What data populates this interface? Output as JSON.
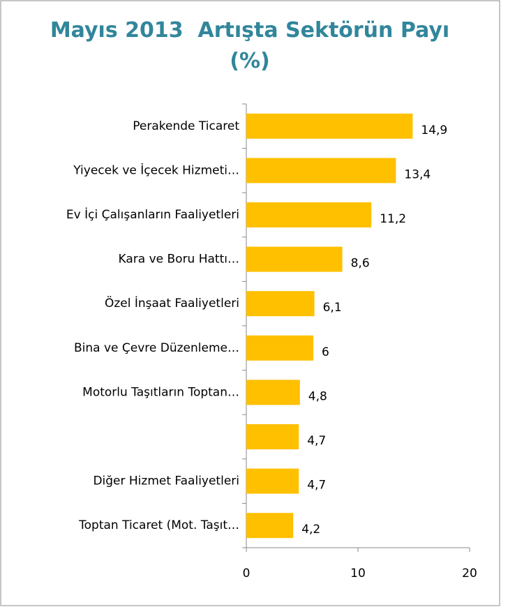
{
  "chart_data": {
    "type": "bar",
    "orientation": "horizontal",
    "title": "Mayıs 2013  Artışta Sektörün Payı\n(%)",
    "categories": [
      "Perakende Ticaret",
      "Yiyecek ve İçecek Hizmeti…",
      "Ev İçi Çalışanların Faaliyetleri",
      "Kara ve Boru Hattı…",
      "Özel İnşaat Faaliyetleri",
      "Bina ve Çevre Düzenleme…",
      "Motorlu Taşıtların Toptan…",
      null,
      "Diğer Hizmet Faaliyetleri",
      "Toptan Ticaret (Mot. Taşıt…"
    ],
    "values": [
      14.9,
      13.4,
      11.2,
      8.6,
      6.1,
      6,
      4.8,
      4.7,
      4.7,
      4.2
    ],
    "value_labels": [
      "14,9",
      "13,4",
      "11,2",
      "8,6",
      "6,1",
      "6",
      "4,8",
      "4,7",
      "4,7",
      "4,2"
    ],
    "color": "#ffc000",
    "xlim": [
      0,
      20
    ],
    "xticks": [
      0,
      10,
      20
    ]
  }
}
